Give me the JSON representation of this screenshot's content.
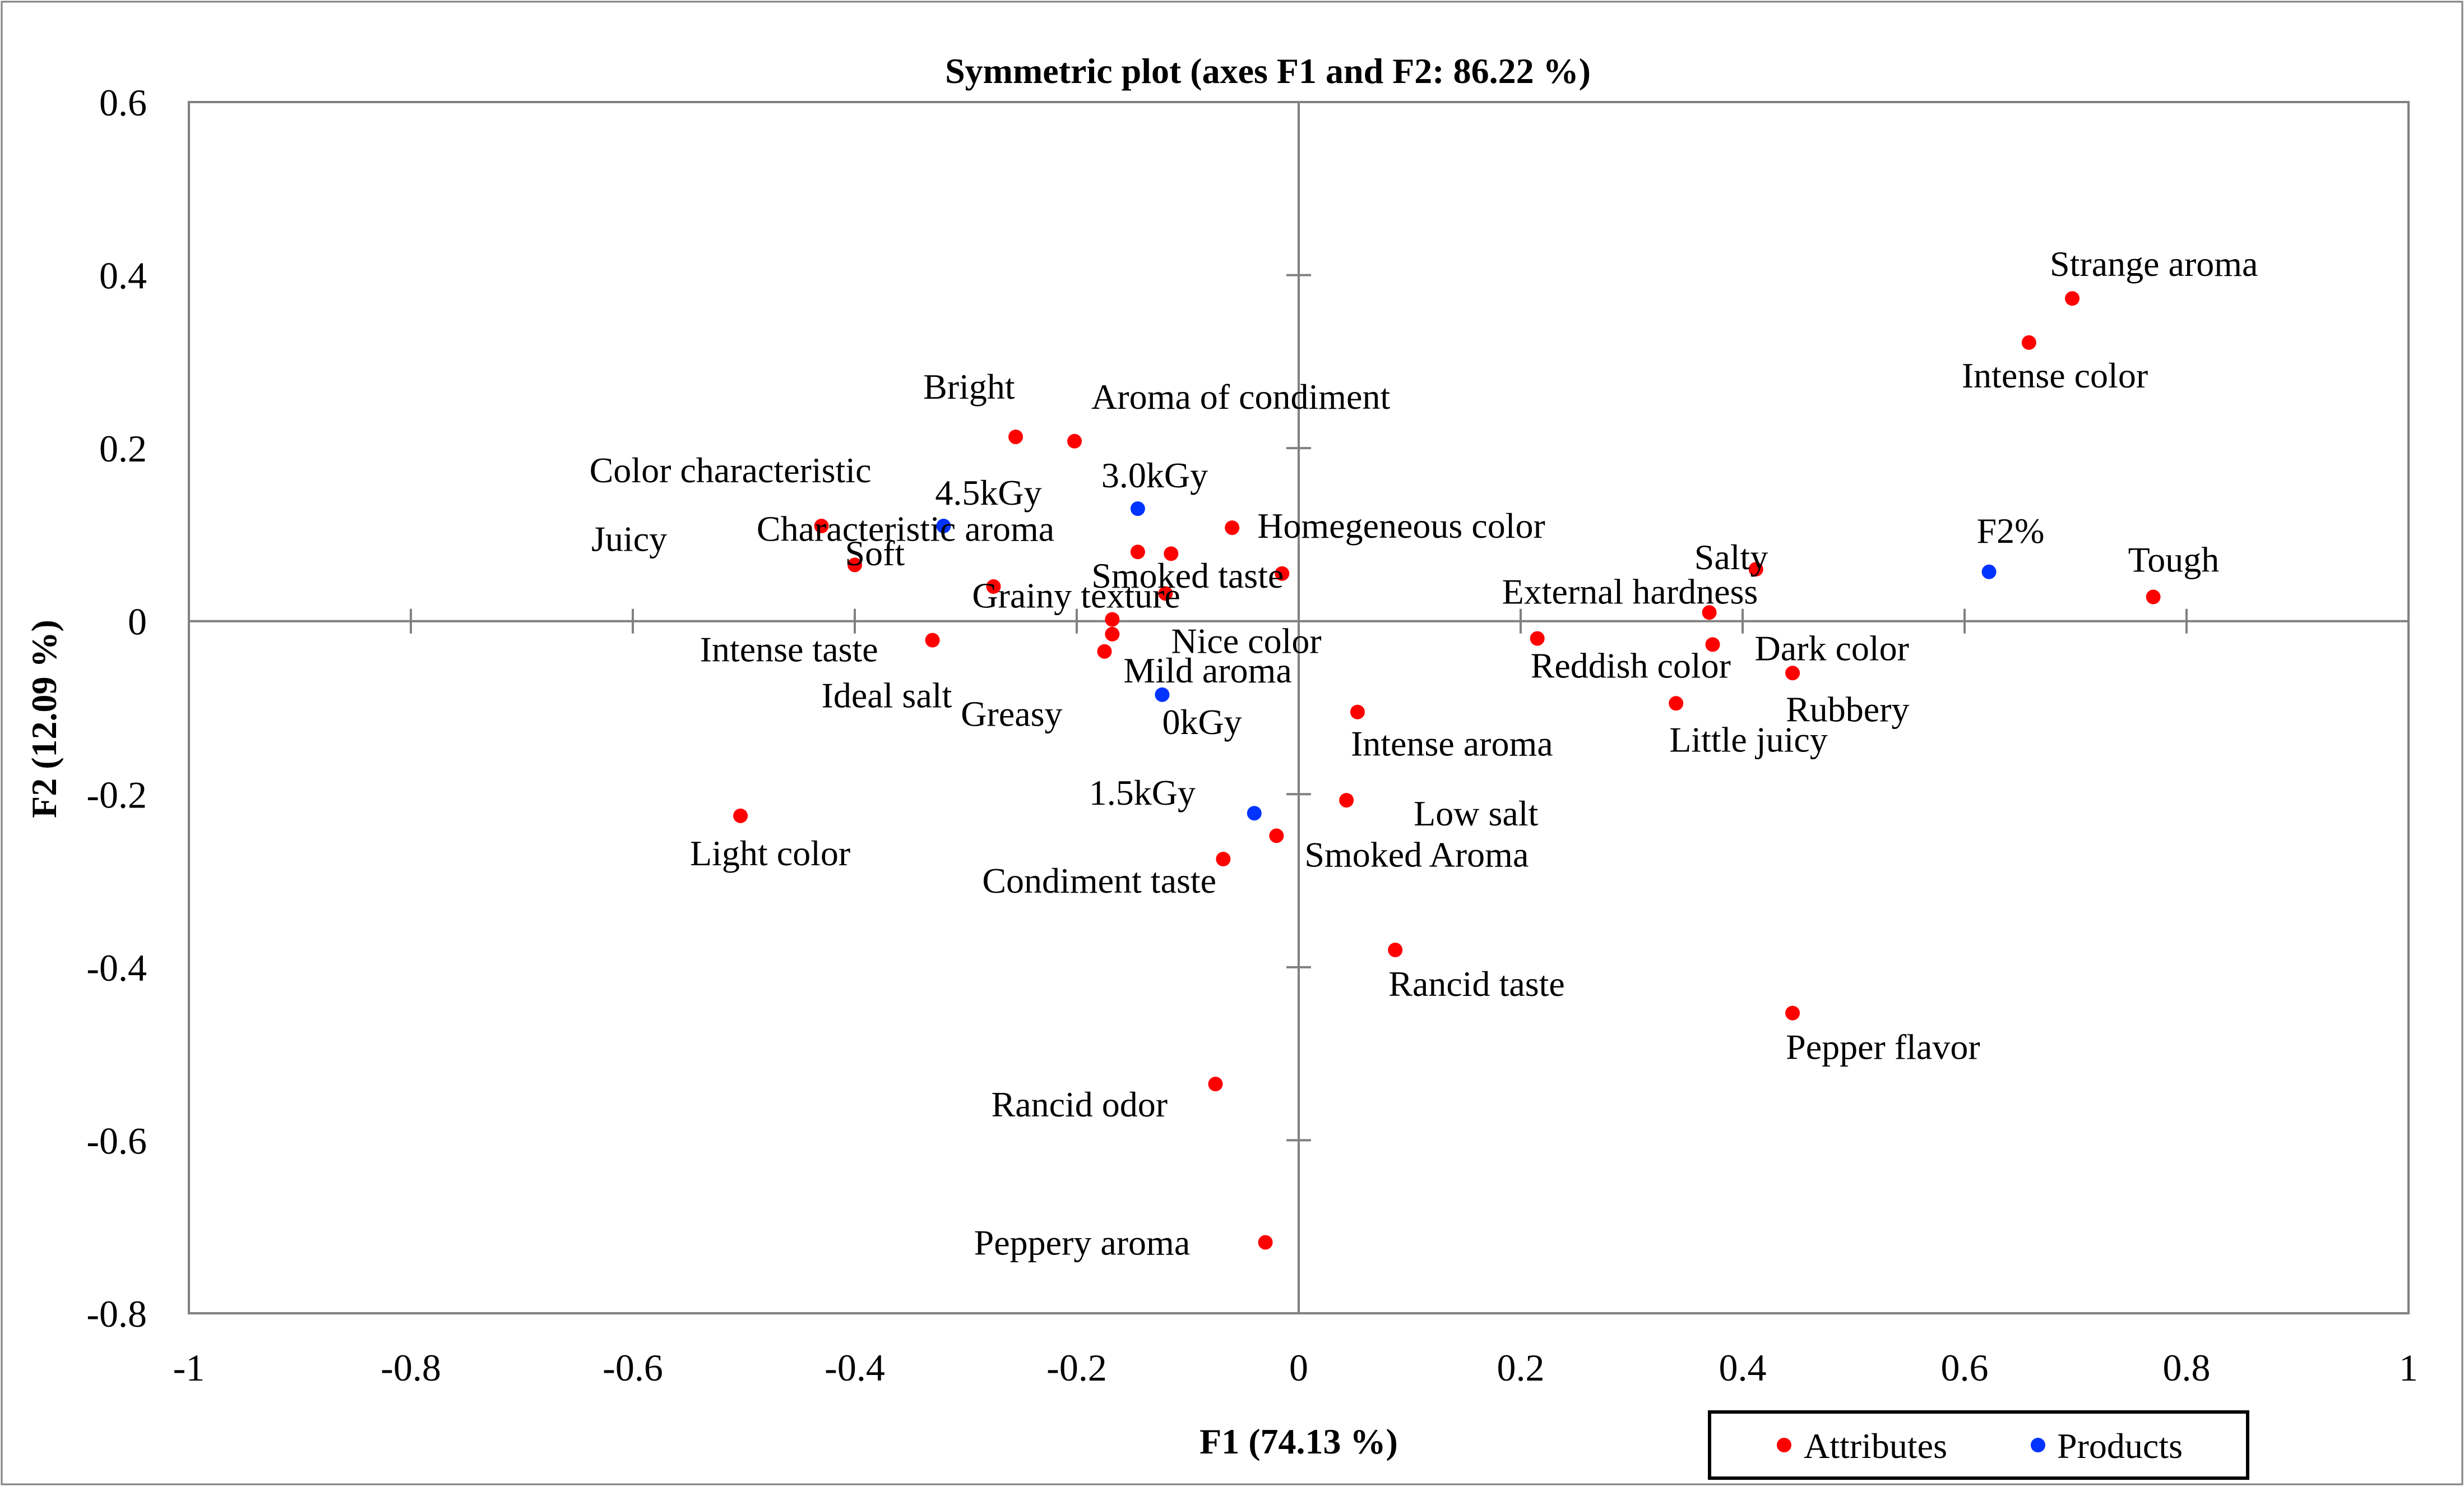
{
  "chart_data": {
    "type": "scatter",
    "title": "Symmetric plot (axes F1 and F2: 86.22 %)",
    "xlabel": "F1 (74.13 %)",
    "ylabel": "F2 (12.09 %)",
    "xlim": [
      -1,
      1
    ],
    "ylim": [
      -0.8,
      0.6
    ],
    "x_ticks": [
      -1,
      -0.8,
      -0.6,
      -0.4,
      -0.2,
      0,
      0.2,
      0.4,
      0.6,
      0.8,
      1
    ],
    "x_tick_labels": [
      "-1",
      "-0.8",
      "-0.6",
      "-0.4",
      "-0.2",
      "0",
      "0.2",
      "0.4",
      "0.6",
      "0.8",
      "1"
    ],
    "y_ticks": [
      0.6,
      0.4,
      0.2,
      0,
      -0.2,
      -0.4,
      -0.6,
      -0.8
    ],
    "y_tick_labels": [
      "0.6",
      "0.4",
      "0.2",
      "0",
      "-0.2",
      "-0.4",
      "-0.6",
      "-0.8"
    ],
    "grid": false,
    "legend_position": "bottom-right",
    "legend": [
      "Attributes",
      "Products"
    ],
    "colors": {
      "Attributes": "#ff0000",
      "Products": "#0033ff"
    },
    "series": [
      {
        "name": "Attributes",
        "points": [
          {
            "label": "Strange aroma",
            "x": 0.697,
            "y": 0.373
          },
          {
            "label": "Intense color",
            "x": 0.658,
            "y": 0.322
          },
          {
            "label": "Tough",
            "x": 0.77,
            "y": 0.028
          },
          {
            "label": "Salty",
            "x": 0.412,
            "y": 0.06
          },
          {
            "label": "External hardness",
            "x": 0.37,
            "y": 0.01
          },
          {
            "label": "Dark color",
            "x": 0.373,
            "y": -0.027
          },
          {
            "label": "Rubbery",
            "x": 0.445,
            "y": -0.06
          },
          {
            "label": "Reddish color",
            "x": 0.215,
            "y": -0.02
          },
          {
            "label": "Little juicy",
            "x": 0.34,
            "y": -0.095
          },
          {
            "label": "Bright",
            "x": -0.255,
            "y": 0.213
          },
          {
            "label": "Aroma of condiment",
            "x": -0.202,
            "y": 0.208
          },
          {
            "label": "Color characteristic",
            "x": -0.43,
            "y": 0.11
          },
          {
            "label": "Juicy",
            "x": -0.4,
            "y": 0.065
          },
          {
            "label": "Soft",
            "x": -0.275,
            "y": 0.04
          },
          {
            "label": "Characteristic aroma",
            "x": -0.145,
            "y": 0.08
          },
          {
            "label": "Homegeneous color",
            "x": -0.06,
            "y": 0.108
          },
          {
            "label": "Smoked taste",
            "x": -0.015,
            "y": 0.055
          },
          {
            "label": "Grainy texture",
            "x": -0.12,
            "y": 0.032
          },
          {
            "label": "Intense taste",
            "x": -0.33,
            "y": -0.022
          },
          {
            "label": "Nice color",
            "x": -0.168,
            "y": 0.002
          },
          {
            "label": "Mild aroma",
            "x": -0.168,
            "y": -0.015
          },
          {
            "label": "Ideal salt",
            "x": -0.175,
            "y": -0.035
          },
          {
            "label": "Greasy",
            "x": -0.115,
            "y": 0.078
          },
          {
            "label": "Intense aroma",
            "x": 0.053,
            "y": -0.105
          },
          {
            "label": "Low salt",
            "x": 0.043,
            "y": -0.207
          },
          {
            "label": "Smoked Aroma",
            "x": -0.02,
            "y": -0.248
          },
          {
            "label": "Condiment taste",
            "x": -0.068,
            "y": -0.275
          },
          {
            "label": "Light color",
            "x": -0.503,
            "y": -0.225
          },
          {
            "label": "Rancid taste",
            "x": 0.087,
            "y": -0.38
          },
          {
            "label": "Pepper flavor",
            "x": 0.445,
            "y": -0.453
          },
          {
            "label": "Rancid odor",
            "x": -0.075,
            "y": -0.535
          },
          {
            "label": "Peppery aroma",
            "x": -0.03,
            "y": -0.718
          }
        ]
      },
      {
        "name": "Products",
        "points": [
          {
            "label": "4.5kGy",
            "x": -0.32,
            "y": 0.11
          },
          {
            "label": "3.0kGy",
            "x": -0.145,
            "y": 0.13
          },
          {
            "label": "0kGy",
            "x": -0.123,
            "y": -0.085
          },
          {
            "label": "1.5kGy",
            "x": -0.04,
            "y": -0.222
          },
          {
            "label": "F2%",
            "x": 0.622,
            "y": 0.057
          }
        ]
      }
    ]
  }
}
